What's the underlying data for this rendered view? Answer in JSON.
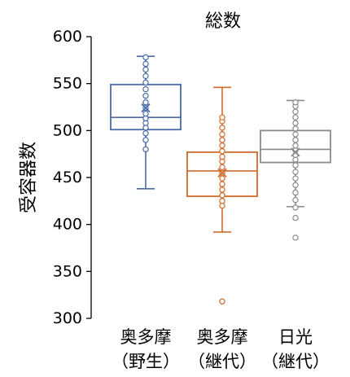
{
  "chart_data": {
    "type": "box",
    "title": "総数",
    "ylabel": "受容器数",
    "xlabel": "",
    "ylim": [
      300,
      600
    ],
    "yticks": [
      300,
      350,
      400,
      450,
      500,
      550,
      600
    ],
    "grid": false,
    "categories": [
      {
        "line1": "奥多摩",
        "line2": "（野生）"
      },
      {
        "line1": "奥多摩",
        "line2": "（継代）"
      },
      {
        "line1": "日光",
        "line2": "（継代）"
      }
    ],
    "series": [
      {
        "color": "#4a6aa8",
        "whisker_low": 438,
        "q1": 501,
        "median": 514,
        "q3": 549,
        "whisker_high": 579,
        "mean": 524,
        "points": [
          480,
          490,
          497,
          503,
          508,
          513,
          518,
          524,
          530,
          537,
          544,
          551,
          558,
          565,
          571,
          578
        ]
      },
      {
        "color": "#d06a2a",
        "whisker_low": 392,
        "q1": 430,
        "median": 457,
        "q3": 477,
        "whisker_high": 546,
        "mean": 455,
        "points": [
          318,
          420,
          425,
          431,
          437,
          443,
          449,
          455,
          461,
          467,
          472,
          478,
          484,
          490,
          496,
          503,
          510,
          514
        ]
      },
      {
        "color": "#8a8a8a",
        "whisker_low": 419,
        "q1": 466,
        "median": 480,
        "q3": 500,
        "whisker_high": 532,
        "mean": 477,
        "points": [
          386,
          407,
          418,
          426,
          434,
          442,
          449,
          456,
          463,
          469,
          474,
          479,
          484,
          490,
          496,
          502,
          508,
          514,
          520,
          526,
          530
        ]
      }
    ]
  }
}
